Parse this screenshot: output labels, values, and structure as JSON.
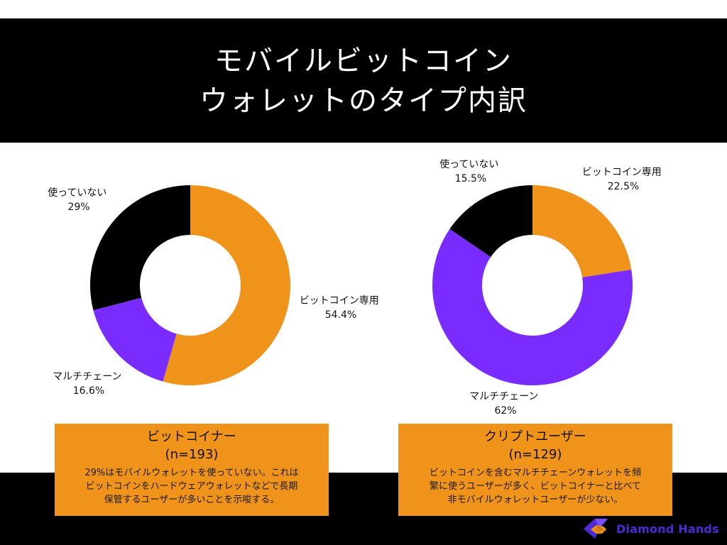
{
  "header": {
    "title_line1": "モバイルビットコイン",
    "title_line2": "ウォレットのタイプ内訳"
  },
  "colors": {
    "bitcoin_only": "#f0931a",
    "multichain": "#7a2cff",
    "not_used": "#000000"
  },
  "chart_data": [
    {
      "type": "pie",
      "style": "donut",
      "slices": [
        {
          "label": "ビットコイン専用",
          "value": 54.4,
          "value_text": "54.4%"
        },
        {
          "label": "マルチチェーン",
          "value": 16.6,
          "value_text": "16.6%"
        },
        {
          "label": "使っていない",
          "value": 29,
          "value_text": "29%"
        }
      ]
    },
    {
      "type": "pie",
      "style": "donut",
      "slices": [
        {
          "label": "ビットコイン専用",
          "value": 22.5,
          "value_text": "22.5%"
        },
        {
          "label": "マルチチェーン",
          "value": 62,
          "value_text": "62%"
        },
        {
          "label": "使っていない",
          "value": 15.5,
          "value_text": "15.5%"
        }
      ]
    }
  ],
  "cards": [
    {
      "heading": "ビットコイナー",
      "n": "(n=193)",
      "desc_lines": [
        "29%はモバイルウォレットを使っていない。これは",
        "ビットコインをハードウェアウォレットなどで長期",
        "保管するユーザーが多いことを示唆する。"
      ]
    },
    {
      "heading": "クリプトユーザー",
      "n": "(n=129)",
      "desc_lines": [
        "ビットコインを含むマルチチェーンウォレットを頻",
        "繁に使うユーザーが多く、ビットコイナーと比べて",
        "非モバイルウォレットユーザーが少ない。"
      ]
    }
  ],
  "logo": {
    "name": "Diamond Hands",
    "icon": "diamond-hands-handshake-icon"
  }
}
